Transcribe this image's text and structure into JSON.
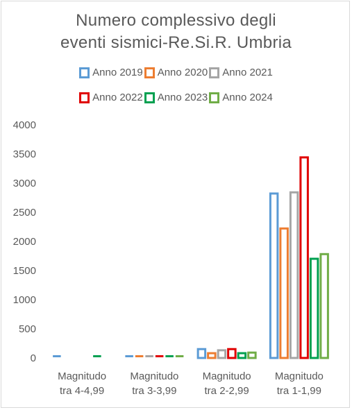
{
  "chart_data": {
    "type": "bar",
    "title_lines": [
      "Numero complessivo degli",
      "eventi sismici-Re.Si.R. Umbria"
    ],
    "xlabel": "",
    "ylabel": "",
    "ylim": [
      0,
      4000
    ],
    "yticks": [
      0,
      500,
      1000,
      1500,
      2000,
      2500,
      3000,
      3500,
      4000
    ],
    "grid": false,
    "legend_position": "top",
    "categories": [
      [
        "Magnitudo",
        "tra 4-4,99"
      ],
      [
        "Magnitudo",
        "tra 3-3,99"
      ],
      [
        "Magnitudo",
        "tra 2-2,99"
      ],
      [
        "Magnitudo",
        "tra 1-1,99"
      ]
    ],
    "series": [
      {
        "name": "Anno 2019",
        "color": "#5b9bd5",
        "values": [
          20,
          20,
          170,
          2840
        ]
      },
      {
        "name": "Anno 2020",
        "color": "#ed7d31",
        "values": [
          0,
          20,
          100,
          2240
        ]
      },
      {
        "name": "Anno 2021",
        "color": "#a5a5a5",
        "values": [
          0,
          20,
          150,
          2860
        ]
      },
      {
        "name": "Anno 2022",
        "color": "#e00000",
        "values": [
          0,
          20,
          170,
          3460
        ]
      },
      {
        "name": "Anno 2023",
        "color": "#00a050",
        "values": [
          20,
          20,
          100,
          1720
        ]
      },
      {
        "name": "Anno 2024",
        "color": "#70ad47",
        "values": [
          0,
          20,
          110,
          1800
        ]
      }
    ]
  }
}
